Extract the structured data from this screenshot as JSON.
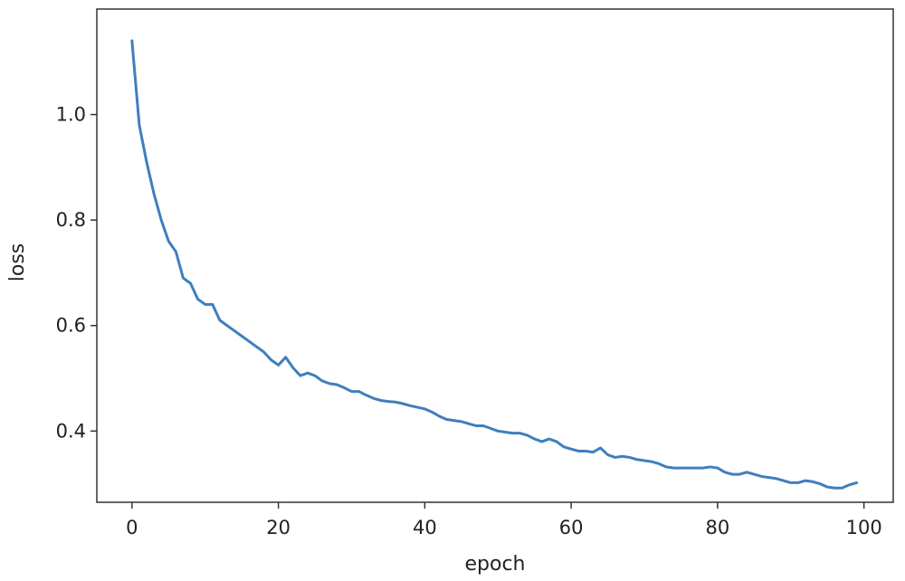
{
  "chart_data": {
    "type": "line",
    "title": "",
    "xlabel": "epoch",
    "ylabel": "loss",
    "xlim": [
      -4.8,
      104
    ],
    "ylim": [
      0.265,
      1.2
    ],
    "xticks": [
      0,
      20,
      40,
      60,
      80,
      100
    ],
    "xtick_labels": [
      "0",
      "20",
      "40",
      "60",
      "80",
      "100"
    ],
    "yticks": [
      0.4,
      0.6,
      0.8,
      1.0
    ],
    "ytick_labels": [
      "0.4",
      "0.6",
      "0.8",
      "1.0"
    ],
    "grid": false,
    "legend": "none",
    "line_color": "#3f7fbd",
    "series": [
      {
        "x": [
          0,
          1,
          2,
          3,
          4,
          5,
          6,
          7,
          8,
          9,
          10,
          11,
          12,
          13,
          14,
          15,
          16,
          17,
          18,
          19,
          20,
          21,
          22,
          23,
          24,
          25,
          26,
          27,
          28,
          29,
          30,
          31,
          32,
          33,
          34,
          35,
          36,
          37,
          38,
          39,
          40,
          41,
          42,
          43,
          44,
          45,
          46,
          47,
          48,
          49,
          50,
          51,
          52,
          53,
          54,
          55,
          56,
          57,
          58,
          59,
          60,
          61,
          62,
          63,
          64,
          65,
          66,
          67,
          68,
          69,
          70,
          71,
          72,
          73,
          74,
          75,
          76,
          77,
          78,
          79,
          80,
          81,
          82,
          83,
          84,
          85,
          86,
          87,
          88,
          89,
          90,
          91,
          92,
          93,
          94,
          95,
          96,
          97,
          98,
          99
        ],
        "values": [
          1.14,
          0.98,
          0.91,
          0.85,
          0.8,
          0.76,
          0.74,
          0.69,
          0.68,
          0.65,
          0.64,
          0.64,
          0.61,
          0.6,
          0.59,
          0.58,
          0.57,
          0.56,
          0.55,
          0.535,
          0.525,
          0.54,
          0.52,
          0.505,
          0.51,
          0.505,
          0.495,
          0.49,
          0.488,
          0.482,
          0.475,
          0.475,
          0.468,
          0.462,
          0.458,
          0.456,
          0.455,
          0.452,
          0.448,
          0.445,
          0.442,
          0.436,
          0.428,
          0.422,
          0.42,
          0.418,
          0.414,
          0.41,
          0.41,
          0.405,
          0.4,
          0.398,
          0.396,
          0.396,
          0.392,
          0.385,
          0.38,
          0.385,
          0.38,
          0.37,
          0.366,
          0.362,
          0.362,
          0.36,
          0.368,
          0.355,
          0.35,
          0.352,
          0.35,
          0.346,
          0.344,
          0.342,
          0.338,
          0.332,
          0.33,
          0.33,
          0.33,
          0.33,
          0.33,
          0.332,
          0.33,
          0.322,
          0.318,
          0.318,
          0.322,
          0.318,
          0.314,
          0.312,
          0.31,
          0.306,
          0.302,
          0.302,
          0.306,
          0.304,
          0.3,
          0.294,
          0.292,
          0.292,
          0.298,
          0.302
        ]
      }
    ]
  }
}
